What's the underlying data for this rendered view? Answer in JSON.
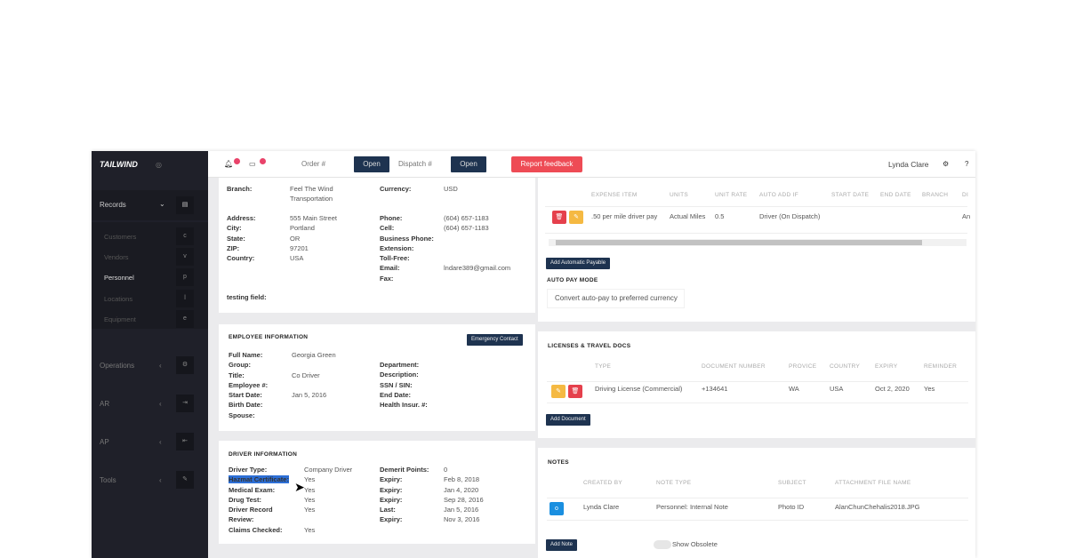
{
  "sidebar": {
    "logo": "TAILWIND",
    "records": "Records",
    "sub": [
      {
        "label": "Customers",
        "key": "c"
      },
      {
        "label": "Vendors",
        "key": "v"
      },
      {
        "label": "Personnel",
        "key": "p"
      },
      {
        "label": "Locations",
        "key": "l"
      },
      {
        "label": "Equipment",
        "key": "e"
      }
    ],
    "groups": [
      "Operations",
      "AR",
      "AP",
      "Tools"
    ]
  },
  "topbar": {
    "order_placeholder": "Order #",
    "dispatch_placeholder": "Dispatch #",
    "open": "Open",
    "report": "Report feedback",
    "user": "Lynda Clare",
    "help": "?"
  },
  "company": {
    "rows": [
      [
        "Branch:",
        "Feel The Wind Transportation",
        "Currency:",
        "USD"
      ]
    ],
    "address": [
      [
        "Address:",
        "555 Main Street"
      ],
      [
        "City:",
        "Portland"
      ],
      [
        "State:",
        "OR"
      ],
      [
        "ZIP:",
        "97201"
      ],
      [
        "Country:",
        "USA"
      ]
    ],
    "contact": [
      [
        "Phone:",
        "(604) 657-1183"
      ],
      [
        "Cell:",
        "(604) 657-1183"
      ],
      [
        "Business Phone:",
        ""
      ],
      [
        "Extension:",
        ""
      ],
      [
        "Toll-Free:",
        ""
      ],
      [
        "Email:",
        "lndare389@gmail.com"
      ],
      [
        "Fax:",
        ""
      ]
    ],
    "testing": "testing field:"
  },
  "employee": {
    "title": "EMPLOYEE INFORMATION",
    "emergency": "Emergency Contact",
    "left": [
      [
        "Full Name:",
        "Georgia Green"
      ],
      [
        "Group:",
        ""
      ],
      [
        "Title:",
        "Co Driver"
      ],
      [
        "Employee #:",
        ""
      ],
      [
        "Start Date:",
        "Jan 5, 2016"
      ],
      [
        "Birth Date:",
        ""
      ],
      [
        "Spouse:",
        ""
      ]
    ],
    "right": [
      "Department:",
      "Description:",
      "SSN / SIN:",
      "End Date:",
      "Health Insur. #:"
    ]
  },
  "driver": {
    "title": "DRIVER INFORMATION",
    "left": [
      [
        "Driver Type:",
        "Company Driver"
      ],
      [
        "Hazmat Certificate:",
        "Yes"
      ],
      [
        "Medical Exam:",
        "Yes"
      ],
      [
        "Drug Test:",
        "Yes"
      ],
      [
        "Driver Record Review:",
        "Yes"
      ],
      [
        "Claims Checked:",
        "Yes"
      ]
    ],
    "right": [
      [
        "Demerit Points:",
        "0"
      ],
      [
        "Expiry:",
        "Feb 8, 2018"
      ],
      [
        "Expiry:",
        "Jan 4, 2020"
      ],
      [
        "Expiry:",
        "Sep 28, 2016"
      ],
      [
        "Last:",
        "Jan 5, 2016"
      ],
      [
        "Expiry:",
        "Nov 3, 2016"
      ]
    ]
  },
  "payables": {
    "headers": [
      "EXPENSE ITEM",
      "UNITS",
      "UNIT RATE",
      "AUTO ADD IF",
      "START DATE",
      "END DATE",
      "BRANCH",
      "DI"
    ],
    "row": [
      ".50 per mile driver pay",
      "Actual Miles",
      "0.5",
      "Driver (On Dispatch)",
      "",
      "",
      "",
      "An"
    ],
    "add": "Add Automatic Payable",
    "mode_label": "AUTO PAY MODE",
    "mode_value": "Convert auto-pay to preferred currency"
  },
  "licenses": {
    "title": "LICENSES & TRAVEL DOCS",
    "headers": [
      "TYPE",
      "DOCUMENT NUMBER",
      "PROVICE",
      "COUNTRY",
      "EXPIRY",
      "REMINDER"
    ],
    "row": [
      "Driving License (Commercial)",
      "+134641",
      "WA",
      "USA",
      "Oct 2, 2020",
      "Yes"
    ],
    "add": "Add Document"
  },
  "notes": {
    "title": "NOTES",
    "headers": [
      "CREATED BY",
      "NOTE TYPE",
      "SUBJECT",
      "ATTACHMENT FILE NAME"
    ],
    "row": [
      "Lynda Clare",
      "Personnel: Internal Note",
      "Photo ID",
      "AlanChunChehalis2018.JPG"
    ],
    "add": "Add Note",
    "obsolete": "Show Obsolete"
  },
  "colors": {
    "sidebar": "#1f2029",
    "primary": "#1e3350",
    "danger": "#ee4b55",
    "warning": "#f5b942",
    "info": "#1a8fe0"
  }
}
